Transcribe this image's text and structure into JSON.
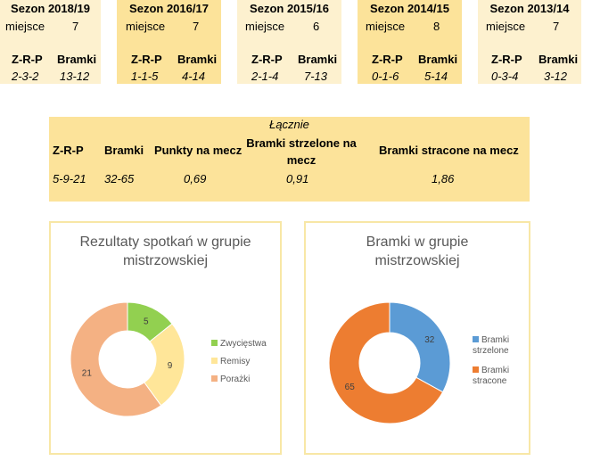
{
  "seasons": [
    {
      "title": "Sezon 2018/19",
      "place_label": "miejsce",
      "place": "7",
      "zrp_label": "Z-R-P",
      "goals_label": "Bramki",
      "zrp": "2-3-2",
      "goals": "13-12"
    },
    {
      "title": "Sezon 2016/17",
      "place_label": "miejsce",
      "place": "7",
      "zrp_label": "Z-R-P",
      "goals_label": "Bramki",
      "zrp": "1-1-5",
      "goals": "4-14"
    },
    {
      "title": "Sezon 2015/16",
      "place_label": "miejsce",
      "place": "6",
      "zrp_label": "Z-R-P",
      "goals_label": "Bramki",
      "zrp": "2-1-4",
      "goals": "7-13"
    },
    {
      "title": "Sezon 2014/15",
      "place_label": "miejsce",
      "place": "8",
      "zrp_label": "Z-R-P",
      "goals_label": "Bramki",
      "zrp": "0-1-6",
      "goals": "5-14"
    },
    {
      "title": "Sezon 2013/14",
      "place_label": "miejsce",
      "place": "7",
      "zrp_label": "Z-R-P",
      "goals_label": "Bramki",
      "zrp": "0-3-4",
      "goals": "3-12"
    }
  ],
  "total": {
    "caption": "Łącznie",
    "zrp_label": "Z-R-P",
    "goals_label": "Bramki",
    "points_label": "Punkty na mecz",
    "scored_label": "Bramki strzelone na mecz",
    "conceded_label": "Bramki stracone na mecz",
    "zrp": "5-9-21",
    "goals": "32-65",
    "points": "0,69",
    "scored": "0,91",
    "conceded": "1,86"
  },
  "chart_data": [
    {
      "type": "pie",
      "title": "Rezultaty spotkań w grupie mistrzowskiej",
      "categories": [
        "Zwycięstwa",
        "Remisy",
        "Porażki"
      ],
      "values": [
        5,
        9,
        21
      ],
      "colors": [
        "#92d050",
        "#ffe699",
        "#f4b183"
      ],
      "legend": "right"
    },
    {
      "type": "pie",
      "title": "Bramki w grupie mistrzowskiej",
      "categories": [
        "Bramki strzelone",
        "Bramki stracone"
      ],
      "values": [
        32,
        65
      ],
      "colors": [
        "#5b9bd5",
        "#ed7d31"
      ],
      "legend": "right"
    }
  ]
}
